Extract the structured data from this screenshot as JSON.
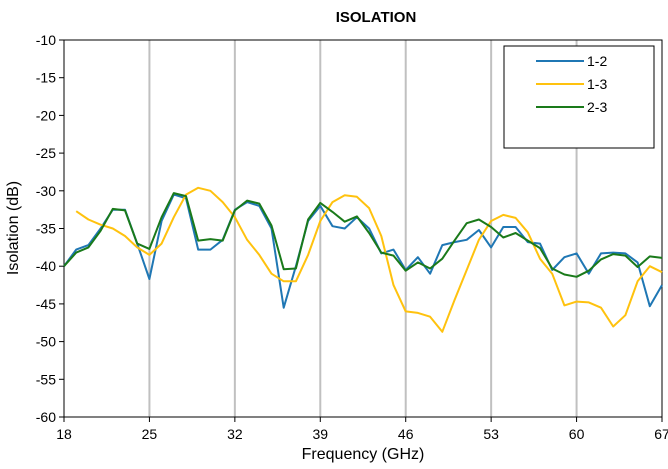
{
  "chart_data": {
    "type": "line",
    "title": "ISOLATION",
    "xlabel": "Frequency (GHz)",
    "ylabel": "Isolation (dB)",
    "xlim": [
      18,
      67
    ],
    "ylim": [
      -60,
      -10
    ],
    "xticks": [
      18,
      25,
      32,
      39,
      46,
      53,
      60,
      67
    ],
    "yticks": [
      -10,
      -15,
      -20,
      -25,
      -30,
      -35,
      -40,
      -45,
      -50,
      -55,
      -60
    ],
    "grid": "vertical",
    "legend_position": "top-right",
    "series": [
      {
        "name": "1-2",
        "color": "#1f77b4",
        "x": [
          18,
          19,
          20,
          21,
          22,
          23,
          24,
          25,
          26,
          27,
          28,
          29,
          30,
          31,
          32,
          33,
          34,
          35,
          36,
          37,
          38,
          39,
          40,
          41,
          42,
          43,
          44,
          45,
          46,
          47,
          48,
          49,
          50,
          51,
          52,
          53,
          54,
          55,
          56,
          57,
          58,
          59,
          60,
          61,
          62,
          63,
          64,
          65,
          66,
          67
        ],
        "y": [
          -40,
          -37.8,
          -37.2,
          -35,
          -32.5,
          -32.5,
          -37,
          -41.7,
          -34,
          -30.5,
          -31,
          -37.8,
          -37.8,
          -36.5,
          -32.5,
          -31.5,
          -32,
          -35,
          -45.5,
          -40,
          -34,
          -32,
          -34.7,
          -35,
          -33.5,
          -35,
          -38.3,
          -37.8,
          -40.5,
          -38.8,
          -41,
          -37.2,
          -36.8,
          -36.5,
          -35.2,
          -37.5,
          -34.8,
          -34.8,
          -36.8,
          -37,
          -40.5,
          -38.8,
          -38.3,
          -41,
          -38.3,
          -38.2,
          -38.3,
          -39.5,
          -45.3,
          -42.5
        ]
      },
      {
        "name": "1-3",
        "color": "#ffc20e",
        "x": [
          19,
          20,
          21,
          22,
          23,
          24,
          25,
          26,
          27,
          28,
          29,
          30,
          31,
          32,
          33,
          34,
          35,
          36,
          37,
          38,
          39,
          40,
          41,
          42,
          43,
          44,
          45,
          46,
          47,
          48,
          49,
          50,
          51,
          52,
          53,
          54,
          55,
          56,
          57,
          58,
          59,
          60,
          61,
          62,
          63,
          64,
          65,
          66,
          67
        ],
        "y": [
          -32.7,
          -33.8,
          -34.5,
          -35,
          -36,
          -37.5,
          -38.5,
          -37,
          -33.5,
          -30.5,
          -29.6,
          -30,
          -31.5,
          -33.5,
          -36.5,
          -38.5,
          -41,
          -42,
          -42,
          -38.5,
          -34,
          -31.5,
          -30.6,
          -30.8,
          -32.3,
          -36,
          -42.5,
          -46,
          -46.2,
          -46.7,
          -48.7,
          -44.5,
          -40.5,
          -36.5,
          -34,
          -33.2,
          -33.6,
          -35.5,
          -39,
          -41,
          -45.2,
          -44.7,
          -44.8,
          -45.5,
          -48,
          -46.5,
          -42,
          -40,
          -40.8
        ]
      },
      {
        "name": "2-3",
        "color": "#1a7a1a",
        "x": [
          18,
          19,
          20,
          21,
          22,
          23,
          24,
          25,
          26,
          27,
          28,
          29,
          30,
          31,
          32,
          33,
          34,
          35,
          36,
          37,
          38,
          39,
          40,
          41,
          42,
          43,
          44,
          45,
          46,
          47,
          48,
          49,
          50,
          51,
          52,
          53,
          54,
          55,
          56,
          57,
          58,
          59,
          60,
          61,
          62,
          63,
          64,
          65,
          66,
          67
        ],
        "y": [
          -40,
          -38.2,
          -37.5,
          -35.3,
          -32.4,
          -32.6,
          -37,
          -37.7,
          -33.5,
          -30.3,
          -30.7,
          -36.6,
          -36.4,
          -36.6,
          -32.6,
          -31.3,
          -31.7,
          -34.6,
          -40.4,
          -40.3,
          -33.8,
          -31.6,
          -32.8,
          -34.1,
          -33.4,
          -35.6,
          -38.2,
          -38.6,
          -40.6,
          -39.5,
          -40.3,
          -39,
          -36.6,
          -34.3,
          -33.8,
          -34.8,
          -36.2,
          -35.6,
          -36.6,
          -37.6,
          -40.3,
          -41.1,
          -41.4,
          -40.6,
          -39.1,
          -38.4,
          -38.6,
          -40.1,
          -38.7,
          -38.9
        ]
      }
    ]
  }
}
